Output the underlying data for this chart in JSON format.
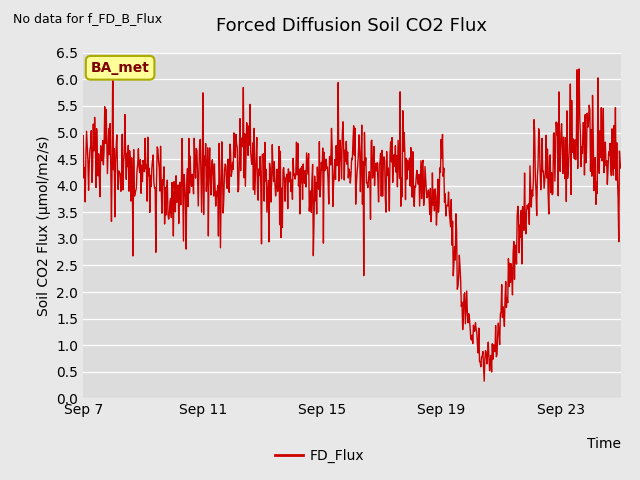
{
  "title": "Forced Diffusion Soil CO2 Flux",
  "xlabel": "Time",
  "ylabel": "Soil CO2 Flux (μmol/m2/s)",
  "no_data_text": "No data for f_FD_B_Flux",
  "legend_label": "FD_Flux",
  "ba_met_label": "BA_met",
  "ylim": [
    0.0,
    6.5
  ],
  "yticks": [
    0.0,
    0.5,
    1.0,
    1.5,
    2.0,
    2.5,
    3.0,
    3.5,
    4.0,
    4.5,
    5.0,
    5.5,
    6.0,
    6.5
  ],
  "tick_labels": [
    "Sep 7",
    "Sep 11",
    "Sep 15",
    "Sep 19",
    "Sep 23"
  ],
  "tick_positions": [
    0,
    4,
    8,
    12,
    16
  ],
  "xlim": [
    0,
    18
  ],
  "line_color": "#cc0000",
  "line_width": 1.0,
  "bg_color": "#e8e8e8",
  "plot_bg_color": "#dcdcdc",
  "ba_met_bg": "#ffff99",
  "ba_met_border": "#aaaa00",
  "ba_met_text_color": "#800000",
  "figsize": [
    6.4,
    4.8
  ],
  "dpi": 100,
  "n_points": 800
}
